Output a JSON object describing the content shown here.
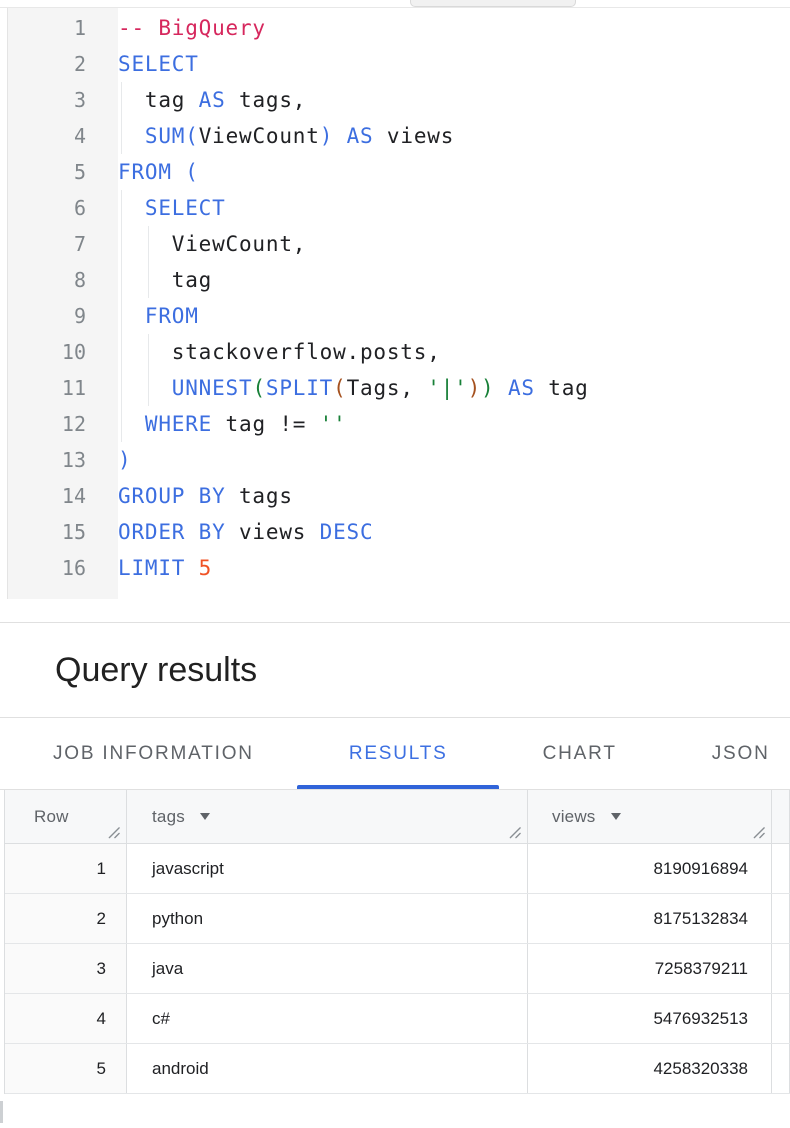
{
  "app": {
    "name": "BigQuery query editor"
  },
  "theme": {
    "text": "#202124",
    "keyword": "#3c6ee0",
    "comment": "#d6275d",
    "string_green": "#188038",
    "bracket_brown": "#a5511f",
    "number_orange": "#f05326",
    "line_number": "#80868b",
    "muted_gray": "#5f6368",
    "active_blue": "#3d70e2",
    "underline_blue": "#3064d9",
    "border": "#e0e0e0",
    "grid_border": "#dcdee0",
    "gutter_bg": "#f5f5f5",
    "header_bg": "#f7f8f9",
    "rowcol_bg": "#fafafa"
  },
  "editor": {
    "language": "SQL",
    "lines": [
      {
        "num": "1",
        "guides": [],
        "tokens": [
          [
            "c",
            "-- BigQuery"
          ]
        ]
      },
      {
        "num": "2",
        "guides": [],
        "tokens": [
          [
            "k",
            "SELECT"
          ]
        ]
      },
      {
        "num": "3",
        "guides": [
          1
        ],
        "tokens": [
          [
            "i",
            "  tag "
          ],
          [
            "k",
            "AS"
          ],
          [
            "i",
            " tags,"
          ]
        ]
      },
      {
        "num": "4",
        "guides": [
          1
        ],
        "tokens": [
          [
            "i",
            "  "
          ],
          [
            "k",
            "SUM"
          ],
          [
            "b1",
            "("
          ],
          [
            "i",
            "ViewCount"
          ],
          [
            "b1",
            ")"
          ],
          [
            "i",
            " "
          ],
          [
            "k",
            "AS"
          ],
          [
            "i",
            " views"
          ]
        ]
      },
      {
        "num": "5",
        "guides": [],
        "tokens": [
          [
            "k",
            "FROM"
          ],
          [
            "i",
            " "
          ],
          [
            "b1",
            "("
          ]
        ]
      },
      {
        "num": "6",
        "guides": [
          1
        ],
        "tokens": [
          [
            "i",
            "  "
          ],
          [
            "k",
            "SELECT"
          ]
        ]
      },
      {
        "num": "7",
        "guides": [
          1,
          2
        ],
        "tokens": [
          [
            "i",
            "    ViewCount,"
          ]
        ]
      },
      {
        "num": "8",
        "guides": [
          1,
          2
        ],
        "tokens": [
          [
            "i",
            "    tag"
          ]
        ]
      },
      {
        "num": "9",
        "guides": [
          1
        ],
        "tokens": [
          [
            "i",
            "  "
          ],
          [
            "k",
            "FROM"
          ]
        ]
      },
      {
        "num": "10",
        "guides": [
          1,
          2
        ],
        "tokens": [
          [
            "i",
            "    stackoverflow.posts,"
          ]
        ]
      },
      {
        "num": "11",
        "guides": [
          1,
          2
        ],
        "tokens": [
          [
            "i",
            "    "
          ],
          [
            "k",
            "UNNEST"
          ],
          [
            "b2",
            "("
          ],
          [
            "k",
            "SPLIT"
          ],
          [
            "b3",
            "("
          ],
          [
            "i",
            "Tags, "
          ],
          [
            "s",
            "'|'"
          ],
          [
            "b3",
            ")"
          ],
          [
            "b2",
            ")"
          ],
          [
            "i",
            " "
          ],
          [
            "k",
            "AS"
          ],
          [
            "i",
            " tag"
          ]
        ]
      },
      {
        "num": "12",
        "guides": [
          1
        ],
        "tokens": [
          [
            "i",
            "  "
          ],
          [
            "k",
            "WHERE"
          ],
          [
            "i",
            " tag != "
          ],
          [
            "s",
            "''"
          ]
        ]
      },
      {
        "num": "13",
        "guides": [],
        "tokens": [
          [
            "b1",
            ")"
          ]
        ]
      },
      {
        "num": "14",
        "guides": [],
        "tokens": [
          [
            "k",
            "GROUP BY"
          ],
          [
            "i",
            " tags"
          ]
        ]
      },
      {
        "num": "15",
        "guides": [],
        "tokens": [
          [
            "k",
            "ORDER BY"
          ],
          [
            "i",
            " views "
          ],
          [
            "k",
            "DESC"
          ]
        ]
      },
      {
        "num": "16",
        "guides": [],
        "tokens": [
          [
            "k",
            "LIMIT"
          ],
          [
            "i",
            " "
          ],
          [
            "n",
            "5"
          ]
        ]
      }
    ]
  },
  "results": {
    "title": "Query results",
    "tabs": [
      {
        "label": "JOB INFORMATION",
        "active": false
      },
      {
        "label": "RESULTS",
        "active": true
      },
      {
        "label": "CHART",
        "active": false
      },
      {
        "label": "JSON",
        "active": false
      }
    ],
    "table": {
      "headers": [
        {
          "label": "Row",
          "sortable": false
        },
        {
          "label": "tags",
          "sortable": true
        },
        {
          "label": "views",
          "sortable": true
        },
        {
          "label": "",
          "sortable": false
        }
      ],
      "rows": [
        {
          "row": "1",
          "tags": "javascript",
          "views": "8190916894"
        },
        {
          "row": "2",
          "tags": "python",
          "views": "8175132834"
        },
        {
          "row": "3",
          "tags": "java",
          "views": "7258379211"
        },
        {
          "row": "4",
          "tags": "c#",
          "views": "5476932513"
        },
        {
          "row": "5",
          "tags": "android",
          "views": "4258320338"
        }
      ]
    }
  }
}
